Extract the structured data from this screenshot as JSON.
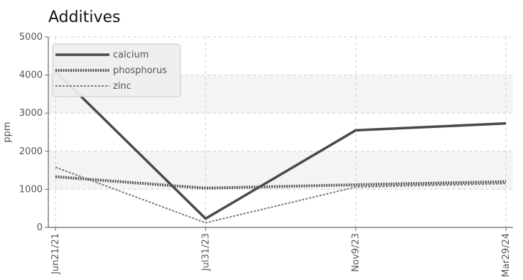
{
  "chart_data": {
    "type": "line",
    "title": "Additives",
    "xlabel": "",
    "ylabel": "ppm",
    "categories": [
      "Jun21/21",
      "Jul31/23",
      "Nov9/23",
      "Mar29/24"
    ],
    "ylim": [
      0,
      5000
    ],
    "yticks": [
      0,
      1000,
      2000,
      3000,
      4000,
      5000
    ],
    "grid": true,
    "legend_position": "top-left",
    "series": [
      {
        "name": "calcium",
        "values": [
          4100,
          230,
          2550,
          2730
        ],
        "color": "#4a4a4a",
        "style": "solid"
      },
      {
        "name": "phosphorus",
        "values": [
          1330,
          1030,
          1120,
          1200
        ],
        "color": "#555555",
        "style": "dotted"
      },
      {
        "name": "zinc",
        "values": [
          1580,
          120,
          1060,
          1150
        ],
        "color": "#7a7a7a",
        "style": "dashed"
      }
    ]
  }
}
